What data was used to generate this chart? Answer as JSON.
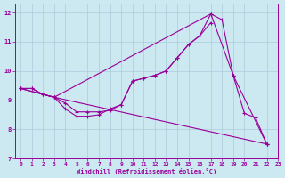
{
  "background_color": "#cce8f0",
  "grid_color": "#aaccdd",
  "line_color": "#990099",
  "xlabel": "Windchill (Refroidissement éolien,°C)",
  "xlim": [
    -0.5,
    23
  ],
  "ylim": [
    7,
    12.3
  ],
  "yticks": [
    7,
    8,
    9,
    10,
    11,
    12
  ],
  "xticks": [
    0,
    1,
    2,
    3,
    4,
    5,
    6,
    7,
    8,
    9,
    10,
    11,
    12,
    13,
    14,
    15,
    16,
    17,
    18,
    19,
    20,
    21,
    22,
    23
  ],
  "line1_x": [
    0,
    1,
    2,
    3,
    4,
    5,
    6,
    7,
    8,
    9,
    10,
    11,
    12,
    13,
    14,
    15,
    16,
    17,
    18,
    19,
    20,
    21,
    22
  ],
  "line1_y": [
    9.4,
    9.4,
    9.2,
    9.1,
    8.7,
    8.45,
    8.45,
    8.5,
    8.7,
    8.85,
    9.65,
    9.75,
    9.85,
    10.0,
    10.45,
    10.9,
    11.2,
    11.95,
    11.75,
    9.85,
    8.55,
    8.4,
    7.5
  ],
  "line2_x": [
    0,
    1,
    2,
    3,
    4,
    5,
    6,
    7,
    8,
    9,
    10,
    11,
    12,
    13,
    14,
    15,
    16,
    17,
    18,
    19,
    20,
    21,
    22
  ],
  "line2_y": [
    9.4,
    9.4,
    9.2,
    9.1,
    8.9,
    8.6,
    8.6,
    8.6,
    8.65,
    8.85,
    9.65,
    9.75,
    9.85,
    10.0,
    10.45,
    10.9,
    11.2,
    11.65,
    null,
    9.85,
    null,
    null,
    null
  ],
  "line3_x": [
    0,
    3,
    22
  ],
  "line3_y": [
    9.4,
    9.1,
    7.5
  ],
  "line4_x": [
    0,
    3,
    17,
    19,
    22
  ],
  "line4_y": [
    9.4,
    9.1,
    11.95,
    9.85,
    7.5
  ]
}
